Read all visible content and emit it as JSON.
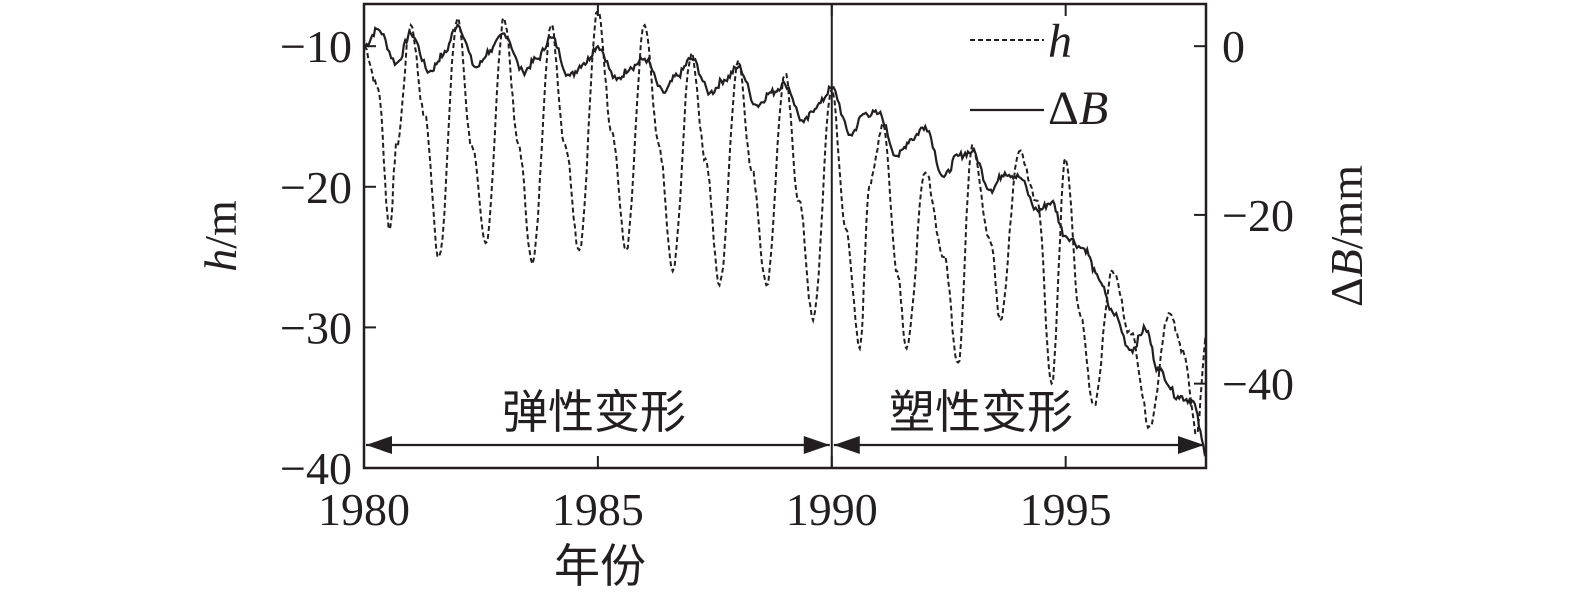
{
  "chart_data": {
    "type": "line",
    "xlabel": "年份",
    "ylabel_left": {
      "symbol": "h",
      "unit": "/m"
    },
    "ylabel_right": {
      "symbol": "ΔB",
      "unit": "/mm"
    },
    "xlim": [
      1980,
      1998
    ],
    "ylim_left": [
      -40,
      -7
    ],
    "ylim_right": [
      -50,
      5
    ],
    "x_ticks": [
      1980,
      1985,
      1990,
      1995
    ],
    "y_left_ticks": [
      -10,
      -20,
      -30,
      -40
    ],
    "y_right_ticks": [
      0,
      -20,
      -40
    ],
    "x_tick_labels": [
      "1980",
      "1985",
      "1990",
      "1995"
    ],
    "y_left_tick_labels": [
      "−10",
      "−20",
      "−30",
      "−40"
    ],
    "y_right_tick_labels": [
      "0",
      "−20",
      "−40"
    ],
    "legend": {
      "position": "top-right",
      "entries": [
        {
          "symbol": "h",
          "style": "dashed"
        },
        {
          "symbol": "ΔB",
          "style": "solid"
        }
      ]
    },
    "annotations": [
      {
        "text": "弹性变形",
        "range": [
          1980,
          1990
        ]
      },
      {
        "text": "塑性变形",
        "range": [
          1990,
          1998
        ]
      }
    ],
    "divider_x": 1990,
    "series": [
      {
        "id": "h",
        "axis": "left",
        "style": "dashed",
        "x": [
          1980.0,
          1980.3,
          1980.55,
          1980.7,
          1981.0,
          1981.3,
          1981.6,
          1982.0,
          1982.3,
          1982.6,
          1983.0,
          1983.3,
          1983.6,
          1984.0,
          1984.3,
          1984.6,
          1985.0,
          1985.3,
          1985.6,
          1986.0,
          1986.3,
          1986.6,
          1987.0,
          1987.3,
          1987.6,
          1988.0,
          1988.3,
          1988.6,
          1989.0,
          1989.3,
          1989.6,
          1990.0,
          1990.3,
          1990.6,
          1990.8,
          1991.1,
          1991.4,
          1991.6,
          1992.0,
          1992.4,
          1992.7,
          1993.0,
          1993.4,
          1993.6,
          1994.0,
          1994.4,
          1994.7,
          1995.0,
          1995.3,
          1995.6,
          1996.0,
          1996.4,
          1996.8,
          1997.2,
          1997.5,
          1997.8,
          1998.0
        ],
        "values": [
          -10.0,
          -13.0,
          -23.0,
          -17.0,
          -8.5,
          -15.0,
          -25.0,
          -8.0,
          -17.0,
          -24.0,
          -8.0,
          -17.0,
          -25.5,
          -8.5,
          -17.0,
          -24.5,
          -7.5,
          -16.0,
          -24.5,
          -8.5,
          -17.0,
          -26.0,
          -10.5,
          -18.0,
          -27.0,
          -11.0,
          -19.0,
          -27.0,
          -12.0,
          -21.0,
          -29.5,
          -13.0,
          -23.0,
          -31.5,
          -20.0,
          -15.5,
          -26.0,
          -31.5,
          -19.0,
          -25.0,
          -32.5,
          -17.0,
          -24.0,
          -29.5,
          -17.5,
          -21.0,
          -34.0,
          -18.0,
          -29.0,
          -35.5,
          -26.0,
          -30.5,
          -37.0,
          -29.0,
          -31.5,
          -37.5,
          -31.0
        ]
      },
      {
        "id": "ΔB",
        "axis": "right",
        "style": "solid",
        "x": [
          1980.0,
          1980.3,
          1980.7,
          1981.0,
          1981.4,
          1981.7,
          1982.0,
          1982.4,
          1982.7,
          1983.0,
          1983.4,
          1983.7,
          1984.0,
          1984.4,
          1984.7,
          1985.0,
          1985.4,
          1985.7,
          1986.0,
          1986.4,
          1986.7,
          1987.0,
          1987.4,
          1987.7,
          1988.0,
          1988.4,
          1988.7,
          1989.0,
          1989.4,
          1989.7,
          1990.0,
          1990.4,
          1990.7,
          1991.0,
          1991.4,
          1991.7,
          1992.0,
          1992.4,
          1992.7,
          1993.0,
          1993.4,
          1993.7,
          1994.0,
          1994.4,
          1994.7,
          1995.0,
          1995.4,
          1995.7,
          1996.0,
          1996.4,
          1996.7,
          1997.0,
          1997.4,
          1997.7,
          1998.0
        ],
        "values": [
          0.0,
          2.0,
          -2.0,
          1.5,
          -3.0,
          -1.0,
          2.5,
          -2.5,
          -0.5,
          1.5,
          -3.0,
          -1.5,
          1.0,
          -3.5,
          -2.0,
          0.0,
          -4.0,
          -2.5,
          -1.5,
          -5.5,
          -3.5,
          -1.5,
          -5.5,
          -4.0,
          -2.5,
          -7.0,
          -5.5,
          -4.5,
          -9.0,
          -7.0,
          -5.0,
          -10.5,
          -8.0,
          -8.0,
          -13.0,
          -11.0,
          -9.5,
          -15.5,
          -13.0,
          -12.5,
          -17.0,
          -15.0,
          -15.5,
          -19.5,
          -18.5,
          -22.5,
          -24.0,
          -27.5,
          -31.5,
          -36.0,
          -33.5,
          -38.5,
          -41.5,
          -42.0,
          -48.0
        ]
      }
    ]
  }
}
